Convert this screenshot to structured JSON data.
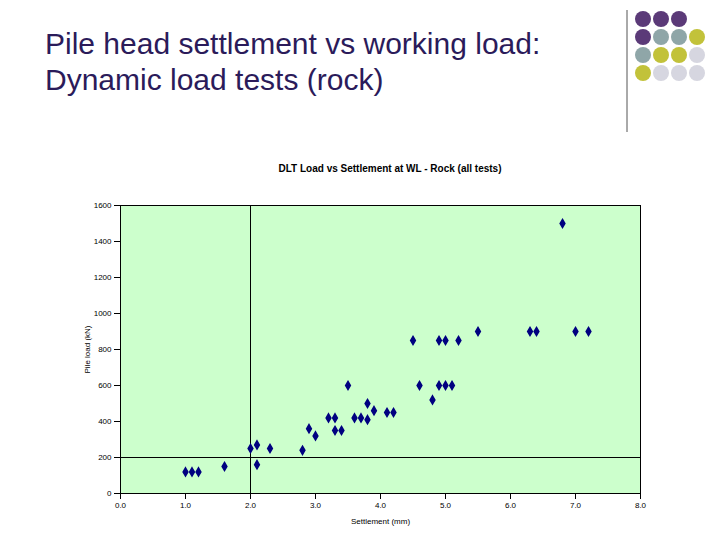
{
  "heading": "Pile head settlement vs working load: Dynamic load tests (rock)",
  "chart_data": {
    "type": "scatter",
    "title": "DLT Load vs Settlement at WL - Rock (all tests)",
    "x_label": "Settlement (mm)",
    "y_label": "Pile load (kN)",
    "x": [
      1.0,
      1.1,
      1.2,
      1.6,
      2.0,
      2.1,
      2.1,
      2.3,
      2.8,
      2.9,
      3.0,
      3.2,
      3.3,
      3.3,
      3.4,
      3.5,
      3.6,
      3.7,
      3.8,
      3.8,
      3.9,
      4.1,
      4.2,
      4.5,
      4.6,
      4.8,
      4.9,
      4.9,
      5.0,
      5.0,
      5.1,
      5.2,
      5.5,
      6.3,
      6.4,
      6.8,
      7.0,
      7.2
    ],
    "values": [
      120,
      120,
      120,
      150,
      250,
      270,
      160,
      250,
      240,
      360,
      320,
      420,
      420,
      350,
      350,
      600,
      420,
      420,
      500,
      410,
      460,
      450,
      450,
      850,
      600,
      520,
      850,
      600,
      850,
      600,
      600,
      850,
      900,
      900,
      900,
      1500,
      900,
      900
    ],
    "color": "#000080",
    "marker": "diamond",
    "xlim": [
      0,
      8
    ],
    "ylim": [
      0,
      1600
    ],
    "xticks": [
      {
        "value": 0,
        "label": "0.0"
      },
      {
        "value": 1,
        "label": "1.0"
      },
      {
        "value": 2,
        "label": "2.0"
      },
      {
        "value": 3,
        "label": "3.0"
      },
      {
        "value": 4,
        "label": "4.0"
      },
      {
        "value": 5,
        "label": "5.0"
      },
      {
        "value": 6,
        "label": "6.0"
      },
      {
        "value": 7,
        "label": "7.0"
      },
      {
        "value": 8,
        "label": "8.0"
      }
    ],
    "yticks": [
      0,
      200,
      400,
      600,
      800,
      1000,
      1200,
      1400,
      1600
    ],
    "vlines": [
      2.0
    ],
    "hlines": [
      200
    ],
    "grid": false
  }
}
